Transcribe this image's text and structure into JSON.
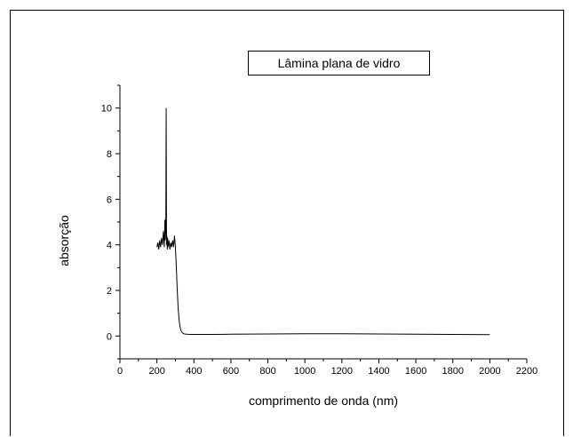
{
  "chart_data": {
    "type": "line",
    "title": "Lâmina plana de vidro",
    "xlabel": "comprimento de onda (nm)",
    "ylabel": "absorção",
    "xlim": [
      0,
      2200
    ],
    "ylim": [
      -1,
      11
    ],
    "x_ticks": [
      "0",
      "200",
      "400",
      "600",
      "800",
      "1000",
      "1200",
      "1400",
      "1600",
      "1800",
      "2000",
      "2200"
    ],
    "y_ticks": [
      "0",
      "2",
      "4",
      "6",
      "8",
      "10"
    ],
    "grid": false,
    "series": [
      {
        "color": "#000000",
        "x": [
          200,
          205,
          210,
          215,
          220,
          225,
          230,
          235,
          240,
          243,
          245,
          248,
          250,
          252,
          254,
          256,
          258,
          260,
          262,
          265,
          270,
          275,
          280,
          285,
          290,
          295,
          300,
          305,
          310,
          315,
          320,
          325,
          330,
          335,
          340,
          345,
          350,
          360,
          380,
          400,
          500,
          600,
          800,
          1000,
          1200,
          1400,
          1600,
          1800,
          2000
        ],
        "y": [
          3.9,
          4.1,
          3.8,
          4.2,
          3.9,
          4.3,
          4.0,
          4.6,
          3.9,
          5.1,
          4.2,
          4.7,
          10.0,
          4.0,
          4.4,
          3.8,
          4.3,
          3.9,
          4.0,
          4.2,
          3.8,
          4.1,
          3.9,
          4.2,
          3.9,
          4.4,
          3.9,
          3.0,
          2.0,
          1.2,
          0.7,
          0.4,
          0.25,
          0.17,
          0.13,
          0.1,
          0.09,
          0.08,
          0.07,
          0.07,
          0.07,
          0.08,
          0.09,
          0.1,
          0.1,
          0.09,
          0.08,
          0.07,
          0.06
        ]
      }
    ]
  }
}
